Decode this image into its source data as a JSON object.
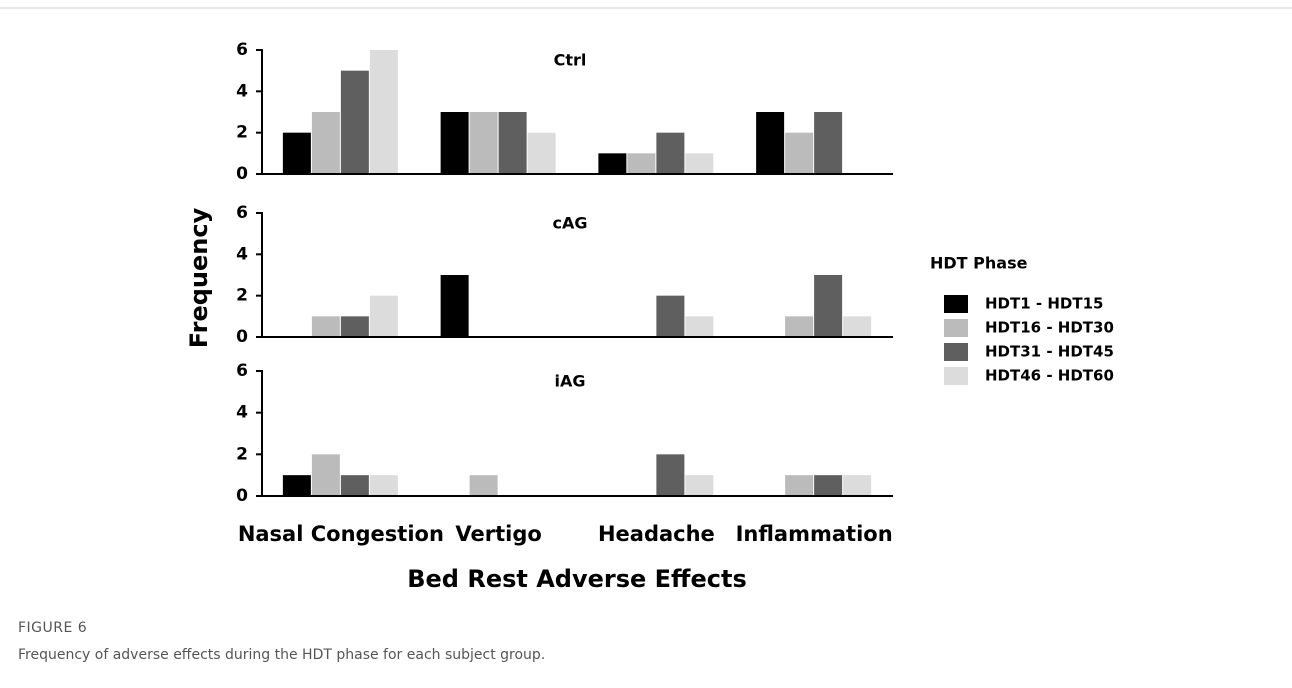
{
  "chart_data": [
    {
      "type": "bar",
      "title": "Ctrl",
      "series": [
        {
          "name": "HDT1 - HDT15",
          "color": "#000000",
          "values": [
            2,
            3,
            1,
            3
          ]
        },
        {
          "name": "HDT16 - HDT30",
          "color": "#bbbbbb",
          "values": [
            3,
            3,
            1,
            2
          ]
        },
        {
          "name": "HDT31 - HDT45",
          "color": "#5f5f5f",
          "values": [
            5,
            3,
            2,
            3
          ]
        },
        {
          "name": "HDT46 - HDT60",
          "color": "#dcdcdc",
          "values": [
            6,
            2,
            1,
            0
          ]
        }
      ],
      "ylim": [
        0,
        6
      ],
      "yticks": [
        0,
        2,
        4,
        6
      ]
    },
    {
      "type": "bar",
      "title": "cAG",
      "series": [
        {
          "color": "#000000",
          "values": [
            0,
            3,
            0,
            0
          ]
        },
        {
          "color": "#bbbbbb",
          "values": [
            1,
            0,
            0,
            1
          ]
        },
        {
          "color": "#5f5f5f",
          "values": [
            1,
            0,
            2,
            3
          ]
        },
        {
          "color": "#dcdcdc",
          "values": [
            2,
            0,
            1,
            1
          ]
        }
      ],
      "ylim": [
        0,
        6
      ],
      "yticks": [
        0,
        2,
        4,
        6
      ]
    },
    {
      "type": "bar",
      "title": "iAG",
      "categories": [
        "Nasal Congestion",
        "Vertigo",
        "Headache",
        "Inflammation"
      ],
      "series": [
        {
          "color": "#000000",
          "values": [
            1,
            0,
            0,
            0
          ]
        },
        {
          "color": "#bbbbbb",
          "values": [
            2,
            1,
            0,
            1
          ]
        },
        {
          "color": "#5f5f5f",
          "values": [
            1,
            0,
            2,
            1
          ]
        },
        {
          "color": "#dcdcdc",
          "values": [
            1,
            0,
            1,
            1
          ]
        }
      ],
      "ylim": [
        0,
        6
      ],
      "yticks": [
        0,
        2,
        4,
        6
      ]
    }
  ],
  "shared": {
    "x_label": "Bed Rest Adverse Effects",
    "y_label": "Frequency",
    "legend_title": "HDT Phase"
  },
  "figure": {
    "label": "FIGURE 6",
    "caption": "Frequency of adverse effects during the HDT phase for each subject group."
  }
}
